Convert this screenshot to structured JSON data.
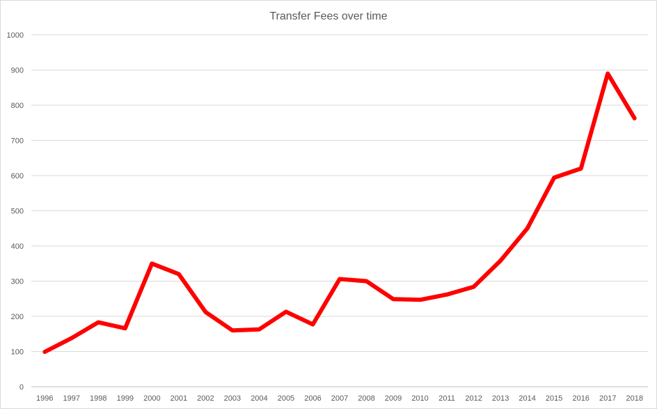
{
  "chart_data": {
    "type": "line",
    "title": "Transfer Fees over time",
    "xlabel": "",
    "ylabel": "",
    "categories": [
      "1996",
      "1997",
      "1998",
      "1999",
      "2000",
      "2001",
      "2002",
      "2003",
      "2004",
      "2005",
      "2006",
      "2007",
      "2008",
      "2009",
      "2010",
      "2011",
      "2012",
      "2013",
      "2014",
      "2015",
      "2016",
      "2017",
      "2018"
    ],
    "series": [
      {
        "values": [
          99,
          138,
          183,
          166,
          350,
          320,
          212,
          160,
          163,
          213,
          177,
          306,
          300,
          249,
          247,
          262,
          284,
          358,
          450,
          594,
          620,
          890,
          763
        ],
        "color": "#ff0000"
      }
    ],
    "ylim": [
      0,
      1000
    ],
    "yticks": [
      "0",
      "100",
      "200",
      "300",
      "400",
      "500",
      "600",
      "700",
      "800",
      "900",
      "1000"
    ],
    "grid": true,
    "legend": "none"
  }
}
